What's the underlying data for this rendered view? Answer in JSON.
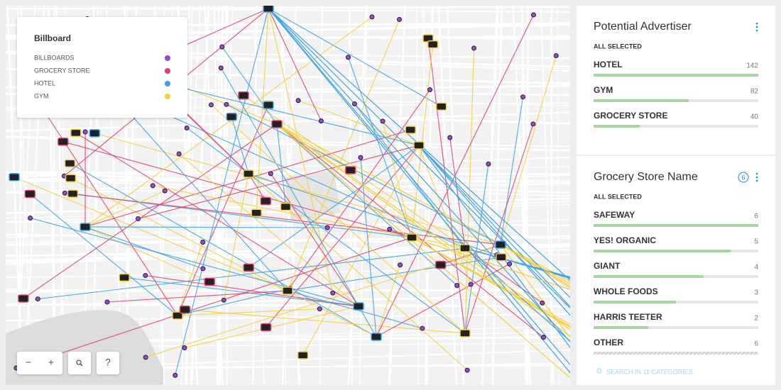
{
  "legend": {
    "title": "Billboard",
    "items": [
      {
        "label": "BILLBOARDS",
        "color": "#9b46d9"
      },
      {
        "label": "GROCERY STORE",
        "color": "#e0426b"
      },
      {
        "label": "HOTEL",
        "color": "#3fa3e8"
      },
      {
        "label": "GYM",
        "color": "#f5cf3c"
      }
    ]
  },
  "widgets": [
    {
      "title": "Potential Advertiser",
      "subtitle": "ALL SELECTED",
      "categories": [
        {
          "name": "HOTEL",
          "count": 142
        },
        {
          "name": "GYM",
          "count": 82
        },
        {
          "name": "GROCERY STORE",
          "count": 40
        }
      ]
    },
    {
      "title": "Grocery Store Name",
      "badge": 6,
      "subtitle": "ALL SELECTED",
      "categories": [
        {
          "name": "SAFEWAY",
          "count": 6
        },
        {
          "name": "YES! ORGANIC",
          "count": 5
        },
        {
          "name": "GIANT",
          "count": 4
        },
        {
          "name": "WHOLE FOODS",
          "count": 3
        },
        {
          "name": "HARRIS TEETER",
          "count": 2
        },
        {
          "name": "OTHER",
          "count": 6
        }
      ],
      "search": "SEARCH IN 11 CATEGORIES"
    }
  ],
  "map_controls": [
    "−",
    "+",
    "?"
  ]
}
